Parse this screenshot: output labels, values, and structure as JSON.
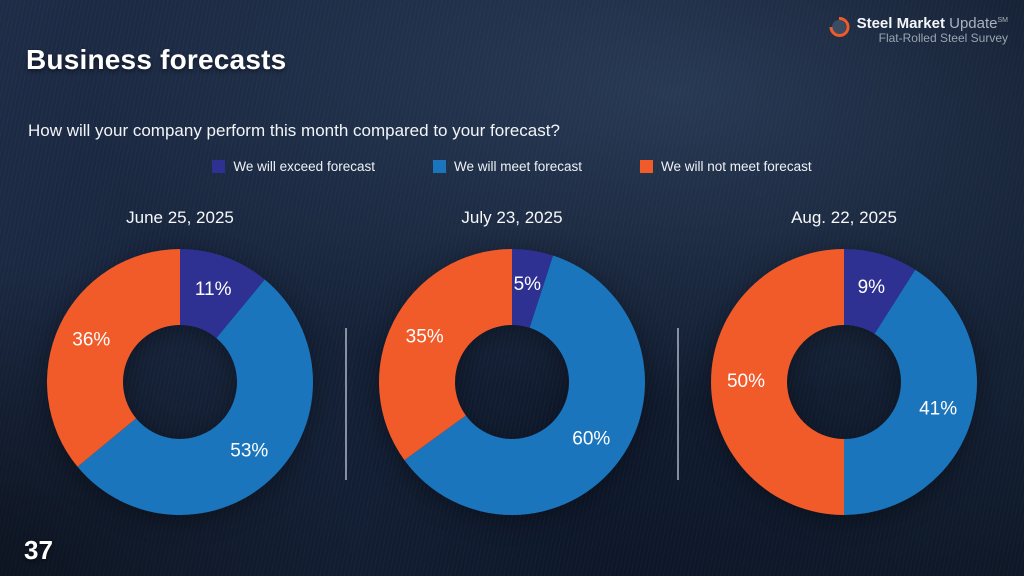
{
  "slide": {
    "title": "Business forecasts",
    "question": "How will your company perform this month compared to your forecast?",
    "page_number": "37"
  },
  "logo": {
    "name_bold": "Steel Market",
    "name_light": "Update",
    "service_mark": "SM",
    "subtitle": "Flat-Rolled Steel Survey",
    "accent_color": "#f15a29"
  },
  "legend": [
    {
      "label": "We will exceed forecast",
      "color": "#2e3192"
    },
    {
      "label": "We will meet forecast",
      "color": "#1b75bc"
    },
    {
      "label": "We will not meet forecast",
      "color": "#f15a29"
    }
  ],
  "chart_data": [
    {
      "type": "pie",
      "subtype": "donut",
      "title": "June 25, 2025",
      "labels": [
        "We will exceed forecast",
        "We will meet forecast",
        "We will not meet forecast"
      ],
      "values": [
        11,
        53,
        36
      ],
      "data_labels": [
        "11%",
        "53%",
        "36%"
      ],
      "colors": [
        "#2e3192",
        "#1b75bc",
        "#f15a29"
      ],
      "start_angle_deg": 0,
      "direction": "clockwise",
      "legend_position": "top"
    },
    {
      "type": "pie",
      "subtype": "donut",
      "title": "July 23, 2025",
      "labels": [
        "We will exceed forecast",
        "We will meet forecast",
        "We will not meet forecast"
      ],
      "values": [
        5,
        60,
        35
      ],
      "data_labels": [
        "5%",
        "60%",
        "35%"
      ],
      "colors": [
        "#2e3192",
        "#1b75bc",
        "#f15a29"
      ],
      "start_angle_deg": 0,
      "direction": "clockwise",
      "legend_position": "top"
    },
    {
      "type": "pie",
      "subtype": "donut",
      "title": "Aug. 22, 2025",
      "labels": [
        "We will exceed forecast",
        "We will meet forecast",
        "We will not meet forecast"
      ],
      "values": [
        9,
        41,
        50
      ],
      "data_labels": [
        "9%",
        "41%",
        "50%"
      ],
      "colors": [
        "#2e3192",
        "#1b75bc",
        "#f15a29"
      ],
      "start_angle_deg": 0,
      "direction": "clockwise",
      "legend_position": "top"
    }
  ]
}
